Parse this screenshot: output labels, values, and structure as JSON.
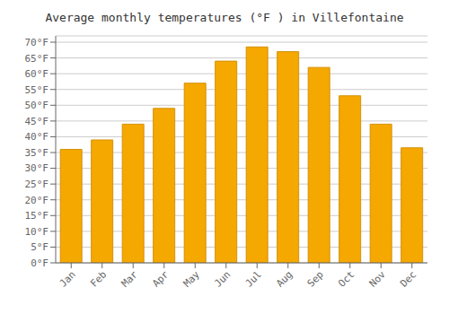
{
  "chart_data": {
    "type": "bar",
    "title": "Average monthly temperatures (°F ) in Villefontaine",
    "categories": [
      "Jan",
      "Feb",
      "Mar",
      "Apr",
      "May",
      "Jun",
      "Jul",
      "Aug",
      "Sep",
      "Oct",
      "Nov",
      "Dec"
    ],
    "values": [
      36,
      39,
      44,
      49,
      57,
      64,
      68.5,
      67,
      62,
      53,
      44,
      36.5
    ],
    "color": "#F5A800",
    "ylim": [
      0,
      72
    ],
    "yticks": [
      {
        "value": 0,
        "label": "0°F"
      },
      {
        "value": 5,
        "label": "5°F"
      },
      {
        "value": 10,
        "label": "10°F"
      },
      {
        "value": 15,
        "label": "15°F"
      },
      {
        "value": 20,
        "label": "20°F"
      },
      {
        "value": 25,
        "label": "25°F"
      },
      {
        "value": 30,
        "label": "30°F"
      },
      {
        "value": 35,
        "label": "35°F"
      },
      {
        "value": 40,
        "label": "40°F"
      },
      {
        "value": 45,
        "label": "45°F"
      },
      {
        "value": 50,
        "label": "50°F"
      },
      {
        "value": 55,
        "label": "55°F"
      },
      {
        "value": 60,
        "label": "60°F"
      },
      {
        "value": 65,
        "label": "65°F"
      },
      {
        "value": 70,
        "label": "70°F"
      }
    ],
    "grid": true
  }
}
